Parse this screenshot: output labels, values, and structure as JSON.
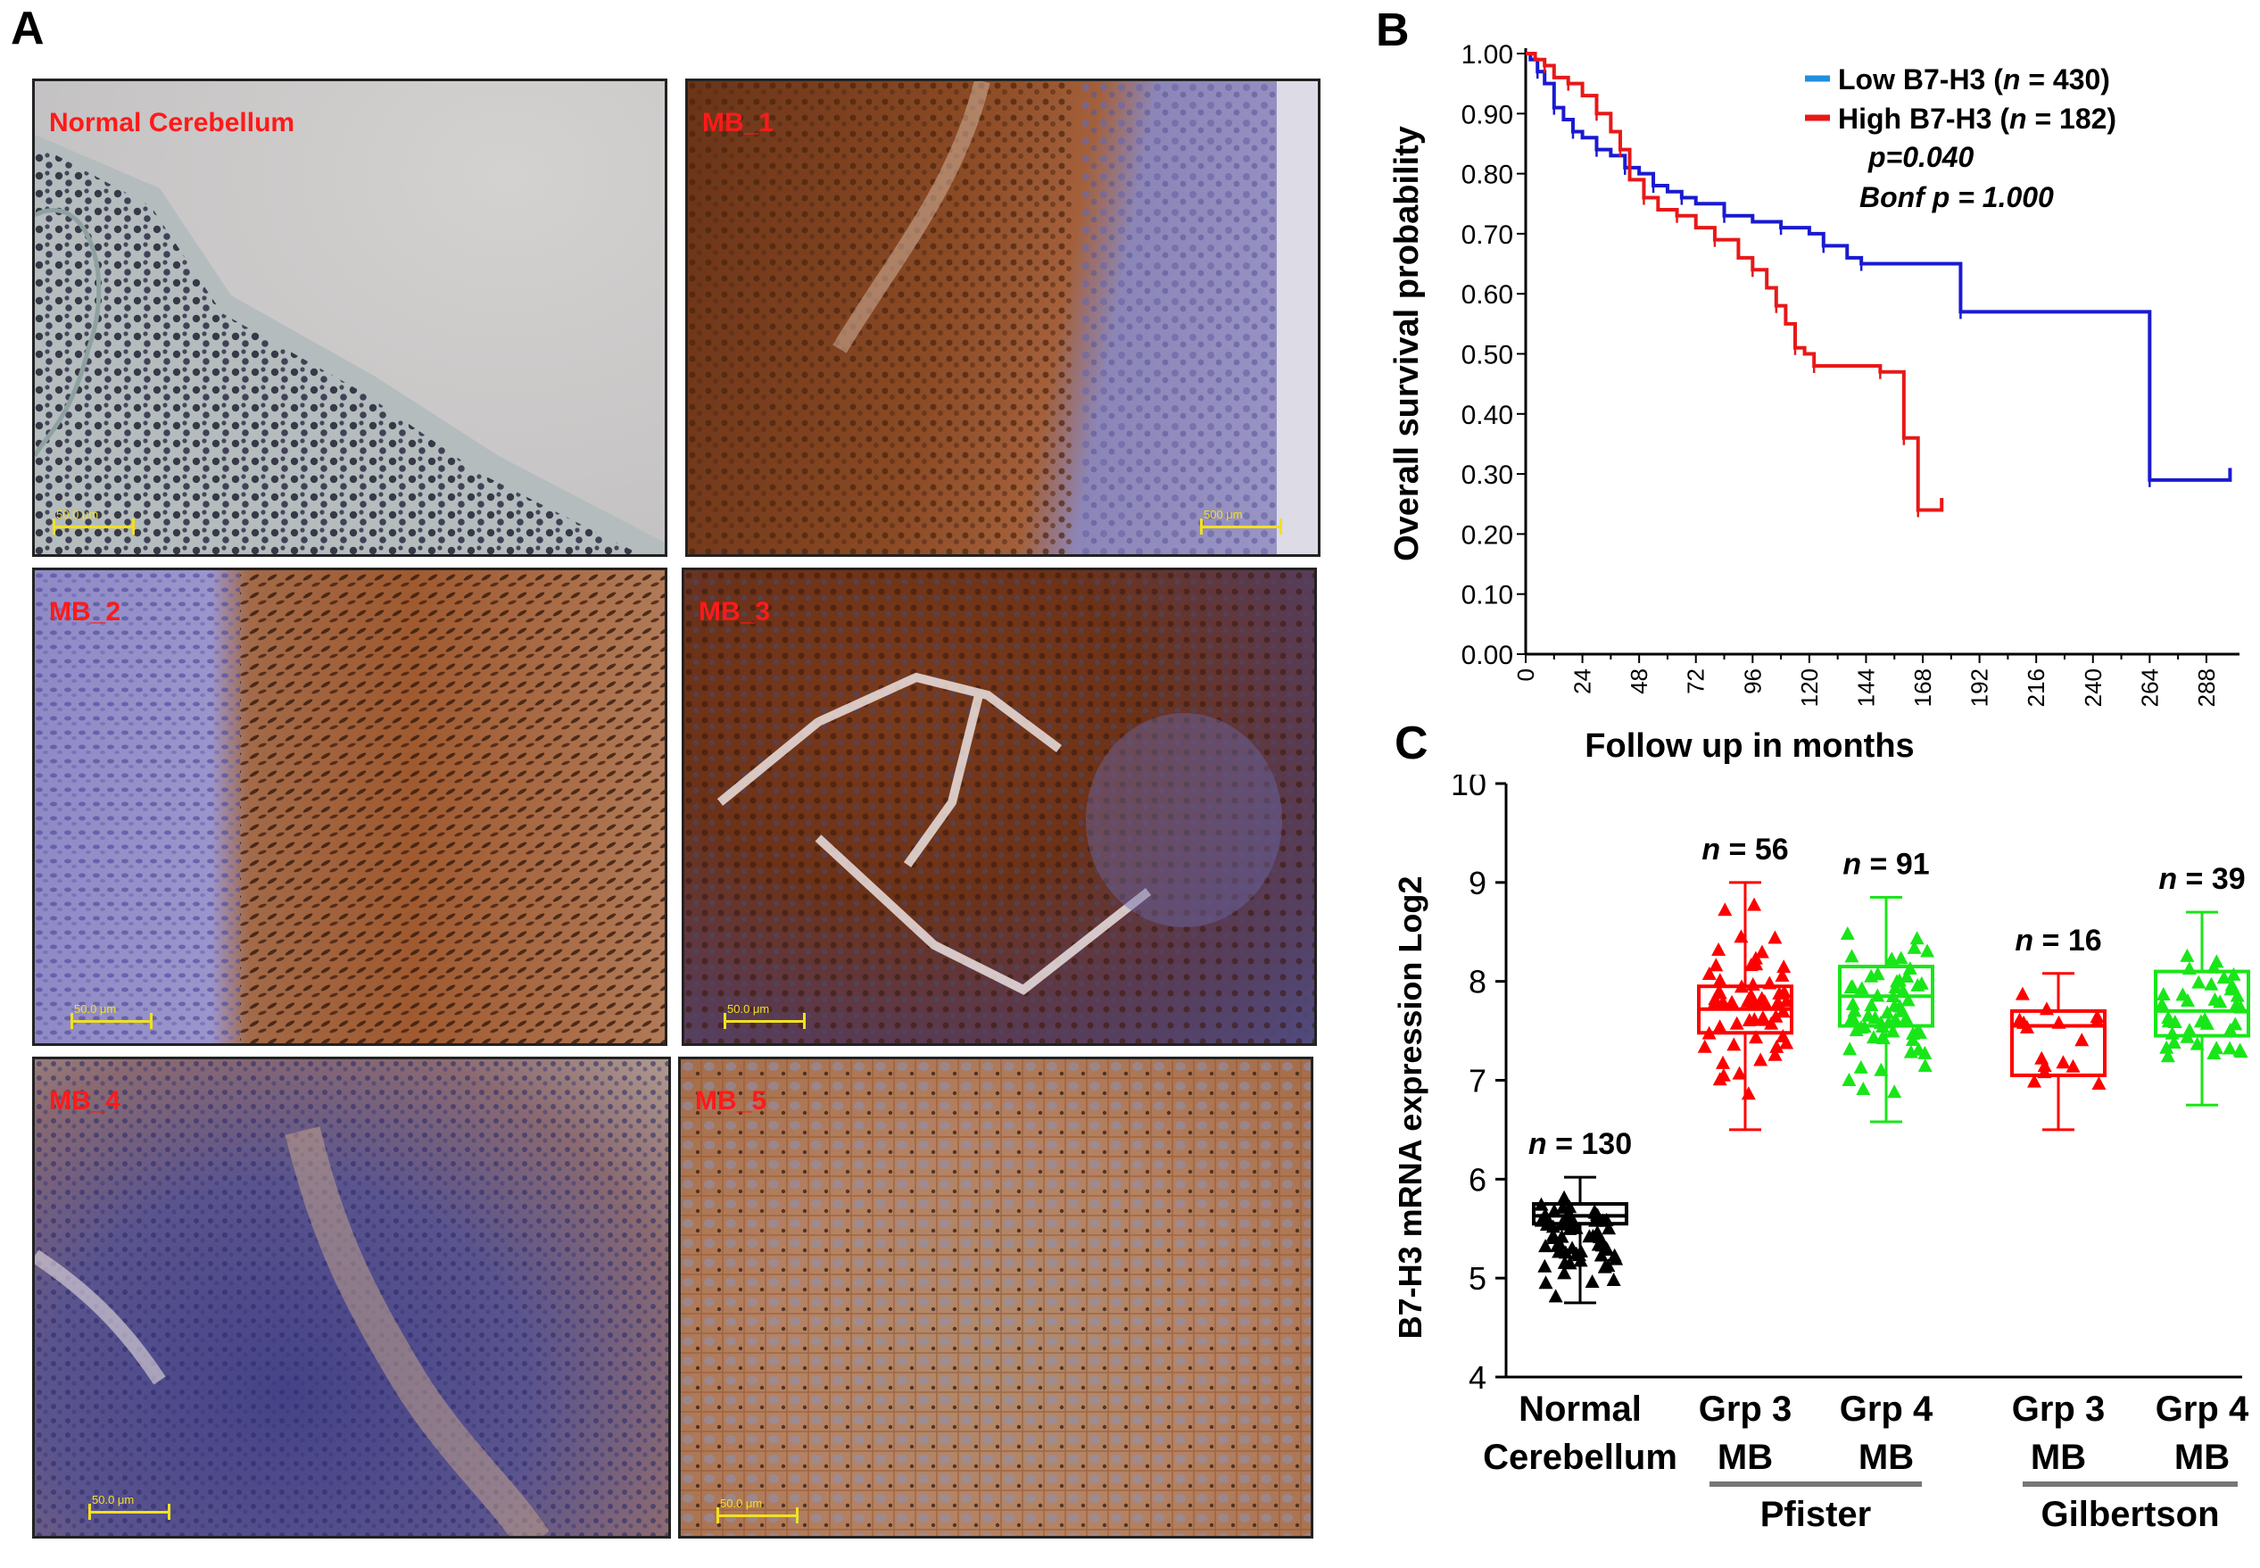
{
  "figure": {
    "panels": {
      "a": "A",
      "b": "B",
      "c": "C"
    },
    "micrographs": [
      {
        "label": "Normal Cerebellum",
        "scale": "50.0 μm",
        "stain": "hematoxylin"
      },
      {
        "label": "MB_1",
        "scale": "500 μm",
        "stain": "mixed"
      },
      {
        "label": "MB_2",
        "scale": "50.0 μm",
        "stain": "mixed"
      },
      {
        "label": "MB_3",
        "scale": "50.0 μm",
        "stain": "dab-strong"
      },
      {
        "label": "MB_4",
        "scale": "50.0 μm",
        "stain": "mixed-purple"
      },
      {
        "label": "MB_5",
        "scale": "50.0 μm",
        "stain": "dab"
      }
    ],
    "colors": {
      "low": "#1a1ad0",
      "high": "#e81818",
      "grp3": "#ff0000",
      "grp4": "#19e619",
      "normal": "#000000",
      "label_red": "#ff1a1a",
      "legend_low": "#1e90e0",
      "bracket": "#777777"
    }
  },
  "chart_data": [
    {
      "type": "line",
      "subtype": "kaplan-meier",
      "xlabel": "Follow up in months",
      "ylabel": "Overall survival probability",
      "xticks": [
        0,
        24,
        48,
        72,
        96,
        120,
        144,
        168,
        192,
        216,
        240,
        264,
        288
      ],
      "yticks": [
        "0.00",
        "0.10",
        "0.20",
        "0.30",
        "0.40",
        "0.50",
        "0.60",
        "0.70",
        "0.80",
        "0.90",
        "1.00"
      ],
      "xlim": [
        0,
        302
      ],
      "ylim": [
        0,
        1.0
      ],
      "legend_position": "top-right",
      "annotations": [
        "p=0.040",
        "Bonf p = 1.000"
      ],
      "series": [
        {
          "name": "Low B7-H3 (n = 430)",
          "name_parts": [
            "Low B7-H3 (",
            "n",
            " = 430)"
          ],
          "color_key": "low",
          "points": [
            [
              0,
              1.0
            ],
            [
              2,
              0.99
            ],
            [
              5,
              0.97
            ],
            [
              8,
              0.95
            ],
            [
              12,
              0.91
            ],
            [
              16,
              0.89
            ],
            [
              20,
              0.87
            ],
            [
              24,
              0.86
            ],
            [
              30,
              0.84
            ],
            [
              36,
              0.83
            ],
            [
              42,
              0.81
            ],
            [
              48,
              0.8
            ],
            [
              54,
              0.78
            ],
            [
              60,
              0.77
            ],
            [
              66,
              0.76
            ],
            [
              72,
              0.75
            ],
            [
              84,
              0.73
            ],
            [
              96,
              0.72
            ],
            [
              108,
              0.71
            ],
            [
              120,
              0.7
            ],
            [
              126,
              0.68
            ],
            [
              136,
              0.66
            ],
            [
              142,
              0.65
            ],
            [
              180,
              0.65
            ],
            [
              184,
              0.57
            ],
            [
              260,
              0.57
            ],
            [
              264,
              0.29
            ],
            [
              298,
              0.29
            ],
            [
              298,
              0.31
            ]
          ]
        },
        {
          "name": "High B7-H3 (n = 182)",
          "name_parts": [
            "High B7-H3 (",
            "n",
            " = 182)"
          ],
          "color_key": "high",
          "points": [
            [
              0,
              1.0
            ],
            [
              4,
              0.99
            ],
            [
              8,
              0.98
            ],
            [
              12,
              0.96
            ],
            [
              18,
              0.95
            ],
            [
              24,
              0.93
            ],
            [
              30,
              0.9
            ],
            [
              36,
              0.87
            ],
            [
              40,
              0.84
            ],
            [
              44,
              0.79
            ],
            [
              50,
              0.76
            ],
            [
              56,
              0.74
            ],
            [
              64,
              0.73
            ],
            [
              72,
              0.71
            ],
            [
              80,
              0.69
            ],
            [
              90,
              0.66
            ],
            [
              96,
              0.64
            ],
            [
              102,
              0.61
            ],
            [
              106,
              0.58
            ],
            [
              110,
              0.55
            ],
            [
              114,
              0.51
            ],
            [
              118,
              0.5
            ],
            [
              122,
              0.48
            ],
            [
              150,
              0.48
            ],
            [
              150,
              0.47
            ],
            [
              160,
              0.47
            ],
            [
              160,
              0.36
            ],
            [
              166,
              0.36
            ],
            [
              166,
              0.24
            ],
            [
              176,
              0.24
            ],
            [
              176,
              0.26
            ]
          ]
        }
      ]
    },
    {
      "type": "box",
      "ylabel": "B7-H3 mRNA expression Log2",
      "ylim": [
        4,
        10
      ],
      "yticks": [
        4,
        5,
        6,
        7,
        8,
        9,
        10
      ],
      "groups": [
        {
          "label1": "Normal",
          "label2": "Cerebellum",
          "n": "130",
          "color_key": "normal",
          "marker": "triangle",
          "q1": 5.55,
          "median": 5.63,
          "q3": 5.75,
          "whisker_low": 4.75,
          "whisker_high": 6.02
        },
        {
          "label1": "Grp 3",
          "label2": "MB",
          "n": "56",
          "color_key": "grp3",
          "marker": "triangle",
          "q1": 7.48,
          "median": 7.72,
          "q3": 7.95,
          "whisker_low": 6.5,
          "whisker_high": 9.0
        },
        {
          "label1": "Grp 4",
          "label2": "MB",
          "n": "91",
          "color_key": "grp4",
          "marker": "triangle",
          "q1": 7.55,
          "median": 7.85,
          "q3": 8.15,
          "whisker_low": 6.58,
          "whisker_high": 8.85
        },
        {
          "label1": "Grp 3",
          "label2": "MB",
          "n": "16",
          "color_key": "grp3",
          "marker": "triangle",
          "q1": 7.05,
          "median": 7.55,
          "q3": 7.7,
          "whisker_low": 6.5,
          "whisker_high": 8.08
        },
        {
          "label1": "Grp 4",
          "label2": "MB",
          "n": "39",
          "color_key": "grp4",
          "marker": "triangle",
          "q1": 7.45,
          "median": 7.7,
          "q3": 8.1,
          "whisker_low": 6.75,
          "whisker_high": 8.7
        }
      ],
      "datasets": [
        {
          "name": "Pfister",
          "groups": [
            1,
            2
          ]
        },
        {
          "name": "Gilbertson",
          "groups": [
            3,
            4
          ]
        }
      ]
    }
  ]
}
